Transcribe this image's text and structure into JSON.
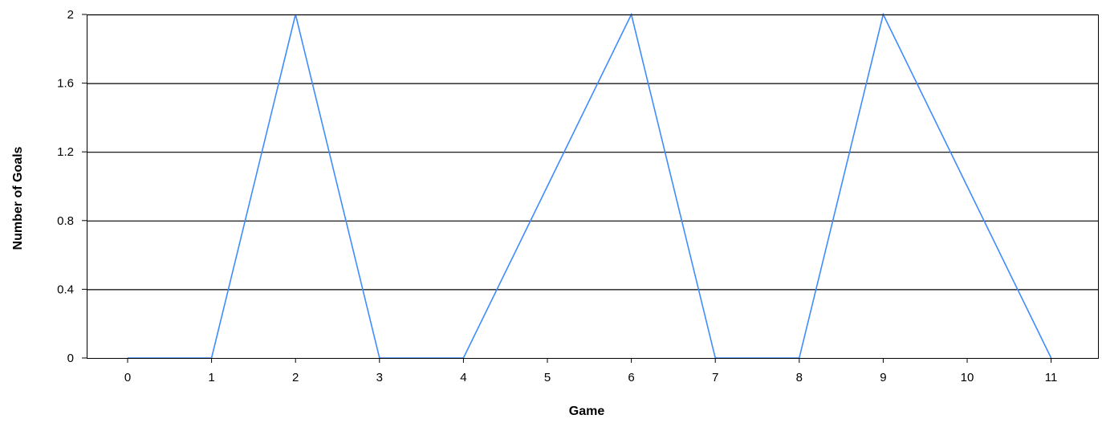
{
  "chart_data": {
    "type": "line",
    "title": "",
    "xlabel": "Game",
    "ylabel": "Number of Goals",
    "x": [
      0,
      1,
      2,
      3,
      4,
      5,
      6,
      7,
      8,
      9,
      10,
      11
    ],
    "x_tick_labels": [
      "0",
      "1",
      "2",
      "3",
      "4",
      "5",
      "6",
      "7",
      "8",
      "9",
      "10",
      "11"
    ],
    "y_ticks": [
      0,
      0.4,
      0.8,
      1.2,
      1.6,
      2
    ],
    "y_tick_labels": [
      "0",
      "0.4",
      "0.8",
      "1.2",
      "1.6",
      "2"
    ],
    "ylim": [
      0,
      2
    ],
    "grid": "horizontal",
    "legend": "none",
    "series": [
      {
        "values": [
          0,
          0,
          2,
          0,
          0,
          1,
          2,
          0,
          0,
          2,
          1,
          0
        ]
      }
    ]
  },
  "colors": {
    "line": "#3f8cff",
    "grid": "#000000",
    "axis": "#000000",
    "background": "#ffffff"
  }
}
